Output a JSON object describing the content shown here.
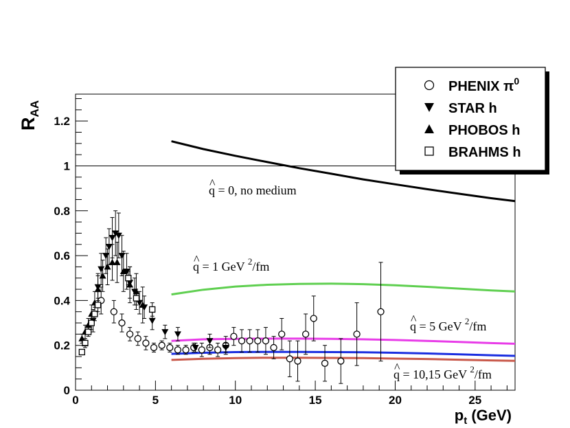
{
  "chart_data": {
    "type": "scatter",
    "title": "",
    "xlabel": "p",
    "xlabel_sub": "t",
    "xlabel_unit": " (GeV)",
    "ylabel": "R",
    "ylabel_sub": "AA",
    "xlim": [
      0,
      27.5
    ],
    "ylim": [
      0,
      1.32
    ],
    "x_ticks": [
      0,
      5,
      10,
      15,
      20,
      25
    ],
    "x_tick_labels": [
      "0",
      "5",
      "10",
      "15",
      "20",
      "25"
    ],
    "y_ticks": [
      0,
      0.2,
      0.4,
      0.6,
      0.8,
      1,
      1.2
    ],
    "y_tick_labels": [
      "0",
      "0.2",
      "0.4",
      "0.6",
      "0.8",
      "1",
      "1.2"
    ],
    "reference_line_y": 1,
    "legend_position": "top-right",
    "legend": [
      {
        "label": "PHENIX π",
        "superscript": "0",
        "marker": "open-circle"
      },
      {
        "label": "STAR h",
        "marker": "down-triangle"
      },
      {
        "label": "PHOBOS h",
        "marker": "up-triangle"
      },
      {
        "label": "BRAHMS h",
        "marker": "open-square"
      }
    ],
    "points": [
      {
        "series": "PHENIX π0",
        "marker": "open-circle",
        "data": [
          [
            1.6,
            0.4,
            0.06
          ],
          [
            2.4,
            0.35,
            0.05
          ],
          [
            2.9,
            0.3,
            0.04
          ],
          [
            3.4,
            0.25,
            0.03
          ],
          [
            3.9,
            0.23,
            0.03
          ],
          [
            4.4,
            0.21,
            0.03
          ],
          [
            4.9,
            0.19,
            0.02
          ],
          [
            5.4,
            0.2,
            0.02
          ],
          [
            5.9,
            0.19,
            0.02
          ],
          [
            6.4,
            0.18,
            0.02
          ],
          [
            6.9,
            0.18,
            0.02
          ],
          [
            7.4,
            0.19,
            0.02
          ],
          [
            7.9,
            0.18,
            0.03
          ],
          [
            8.4,
            0.19,
            0.03
          ],
          [
            8.9,
            0.18,
            0.03
          ],
          [
            9.4,
            0.2,
            0.04
          ],
          [
            9.9,
            0.24,
            0.04
          ],
          [
            10.4,
            0.22,
            0.05
          ],
          [
            10.9,
            0.22,
            0.05
          ],
          [
            11.4,
            0.22,
            0.05
          ],
          [
            11.9,
            0.22,
            0.06
          ],
          [
            12.4,
            0.19,
            0.05
          ],
          [
            12.9,
            0.25,
            0.07
          ],
          [
            13.4,
            0.14,
            0.08
          ],
          [
            13.9,
            0.13,
            0.09
          ],
          [
            14.4,
            0.25,
            0.09
          ],
          [
            14.9,
            0.32,
            0.1
          ],
          [
            15.6,
            0.12,
            0.08
          ],
          [
            16.6,
            0.13,
            0.1
          ],
          [
            17.6,
            0.25,
            0.14
          ],
          [
            19.1,
            0.35,
            0.22
          ]
        ]
      },
      {
        "series": "STAR h",
        "marker": "down-triangle",
        "data": [
          [
            1.1,
            0.31,
            0.05
          ],
          [
            1.4,
            0.46,
            0.06
          ],
          [
            1.6,
            0.54,
            0.07
          ],
          [
            1.9,
            0.6,
            0.08
          ],
          [
            2.1,
            0.64,
            0.08
          ],
          [
            2.3,
            0.68,
            0.09
          ],
          [
            2.5,
            0.7,
            0.1
          ],
          [
            2.7,
            0.69,
            0.1
          ],
          [
            2.9,
            0.6,
            0.09
          ],
          [
            3.2,
            0.53,
            0.08
          ],
          [
            3.4,
            0.48,
            0.07
          ],
          [
            3.7,
            0.44,
            0.06
          ],
          [
            4.0,
            0.39,
            0.05
          ],
          [
            4.3,
            0.37,
            0.05
          ],
          [
            4.8,
            0.31,
            0.04
          ],
          [
            5.6,
            0.26,
            0.03
          ],
          [
            6.4,
            0.25,
            0.03
          ],
          [
            7.5,
            0.19,
            0.02
          ],
          [
            8.4,
            0.22,
            0.03
          ],
          [
            9.4,
            0.19,
            0.02
          ]
        ]
      },
      {
        "series": "PHOBOS h",
        "marker": "up-triangle",
        "data": [
          [
            0.4,
            0.23,
            0.02
          ],
          [
            0.6,
            0.26,
            0.03
          ],
          [
            0.8,
            0.29,
            0.03
          ],
          [
            1.0,
            0.34,
            0.04
          ],
          [
            1.2,
            0.39,
            0.05
          ],
          [
            1.4,
            0.45,
            0.06
          ],
          [
            1.7,
            0.51,
            0.07
          ],
          [
            2.0,
            0.55,
            0.08
          ],
          [
            2.3,
            0.57,
            0.08
          ],
          [
            2.6,
            0.57,
            0.09
          ],
          [
            3.0,
            0.53,
            0.09
          ],
          [
            3.4,
            0.47,
            0.08
          ],
          [
            3.8,
            0.44,
            0.08
          ],
          [
            4.2,
            0.38,
            0.08
          ]
        ]
      },
      {
        "series": "BRAHMS h",
        "marker": "open-square",
        "data": [
          [
            0.4,
            0.17,
            0.01
          ],
          [
            0.6,
            0.21,
            0.02
          ],
          [
            0.8,
            0.26,
            0.02
          ],
          [
            1.0,
            0.3,
            0.03
          ],
          [
            1.2,
            0.34,
            0.03
          ],
          [
            1.4,
            0.38,
            0.03
          ],
          [
            3.3,
            0.5,
            0.03
          ],
          [
            3.8,
            0.41,
            0.03
          ],
          [
            4.8,
            0.36,
            0.03
          ]
        ]
      }
    ],
    "curves": [
      {
        "color": "#000000",
        "x": [
          6,
          8,
          10,
          12,
          14,
          16,
          18,
          20,
          22,
          24,
          26,
          27.5
        ],
        "y": [
          1.11,
          1.075,
          1.045,
          1.017,
          0.99,
          0.965,
          0.94,
          0.918,
          0.896,
          0.876,
          0.856,
          0.843
        ],
        "label_main": "q = 0, no medium",
        "label_sup": ""
      },
      {
        "color": "#5fcf50",
        "x": [
          6,
          8,
          10,
          12,
          14,
          16,
          18,
          20,
          22,
          24,
          26,
          27.5
        ],
        "y": [
          0.427,
          0.448,
          0.462,
          0.47,
          0.474,
          0.475,
          0.473,
          0.468,
          0.461,
          0.453,
          0.445,
          0.44
        ],
        "label_main": "q = 1 GeV ",
        "label_sup": "2",
        "label_tail": "/fm"
      },
      {
        "color": "#e83ce8",
        "x": [
          6,
          8,
          10,
          12,
          14,
          16,
          18,
          20,
          22,
          24,
          26,
          27.5
        ],
        "y": [
          0.22,
          0.227,
          0.229,
          0.23,
          0.23,
          0.229,
          0.227,
          0.224,
          0.22,
          0.215,
          0.21,
          0.207
        ],
        "label_main": "q = 5 GeV ",
        "label_sup": "2",
        "label_tail": "/fm"
      },
      {
        "color": "#1a2ee0",
        "x": [
          6,
          8,
          10,
          12,
          14,
          16,
          18,
          20,
          22,
          24,
          26,
          27.5
        ],
        "y": [
          0.162,
          0.167,
          0.17,
          0.171,
          0.171,
          0.17,
          0.169,
          0.167,
          0.164,
          0.16,
          0.156,
          0.153
        ],
        "label_main": "",
        "label_sup": ""
      },
      {
        "color": "#c8584a",
        "x": [
          6,
          8,
          10,
          12,
          14,
          16,
          18,
          20,
          22,
          24,
          26,
          27.5
        ],
        "y": [
          0.135,
          0.14,
          0.143,
          0.145,
          0.145,
          0.144,
          0.143,
          0.141,
          0.139,
          0.136,
          0.133,
          0.131
        ],
        "label_main": "q = 10,15 GeV ",
        "label_sup": "2",
        "label_tail": "/fm"
      }
    ]
  }
}
